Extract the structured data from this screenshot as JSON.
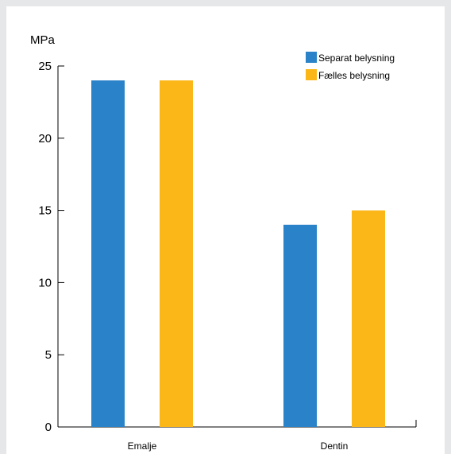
{
  "chart_data": {
    "type": "bar",
    "categories": [
      "Emalje",
      "Dentin"
    ],
    "series": [
      {
        "name": "Separat belysning",
        "color": "#2a83c8",
        "values": [
          24,
          14
        ]
      },
      {
        "name": "Fælles belysning",
        "color": "#fbb717",
        "values": [
          24,
          15
        ]
      }
    ],
    "ylabel": "MPa",
    "xlabel": "",
    "ylim": [
      0,
      25
    ],
    "yticks": [
      0,
      5,
      10,
      15,
      20,
      25
    ],
    "grid": false,
    "legend": "top-right"
  }
}
